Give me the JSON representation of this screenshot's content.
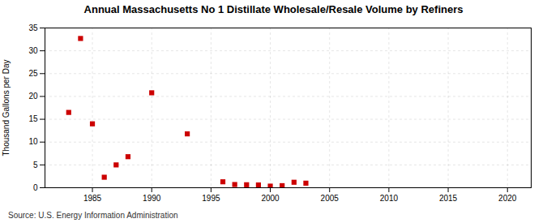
{
  "chart_data": {
    "type": "scatter",
    "title": "Annual Massachusetts No 1 Distillate Wholesale/Resale Volume by Refiners",
    "ylabel": "Thousand Gallons per Day",
    "annotations": [
      "Source: U.S. Energy Information Administration"
    ],
    "x": [
      1983,
      1984,
      1985,
      1986,
      1987,
      1988,
      1990,
      1993,
      1996,
      1997,
      1998,
      1999,
      2000,
      2001,
      2002,
      2003
    ],
    "values": [
      16.5,
      32.7,
      14.0,
      2.3,
      5.0,
      6.8,
      20.8,
      11.8,
      1.3,
      0.7,
      0.65,
      0.6,
      0.35,
      0.45,
      1.2,
      1.0
    ],
    "color": "#cc0000",
    "marker": "square",
    "xlim": [
      1981,
      2022
    ],
    "xticks": [
      1985,
      1990,
      1995,
      2000,
      2005,
      2010,
      2015,
      2020
    ],
    "ylim": [
      0,
      35
    ],
    "yticks": [
      0,
      5,
      10,
      15,
      20,
      25,
      30,
      35
    ],
    "grid": true
  }
}
